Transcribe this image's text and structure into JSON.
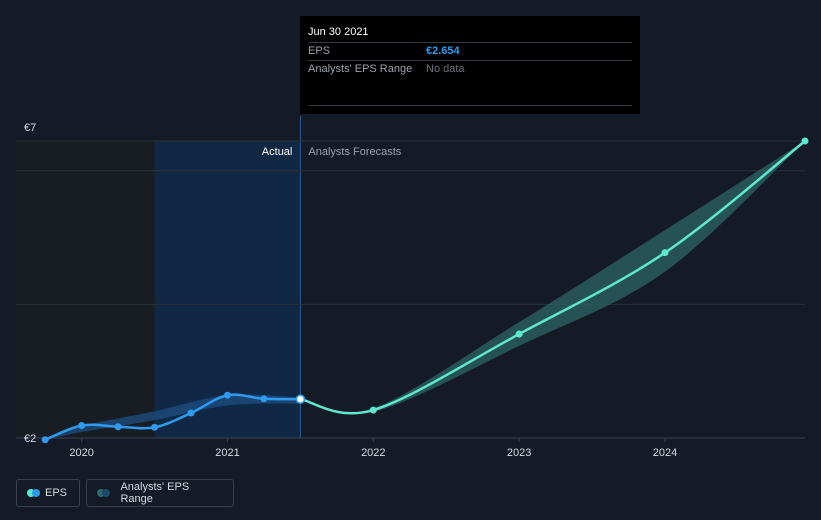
{
  "tooltip": {
    "date": "Jun 30 2021",
    "eps_label": "EPS",
    "eps_value": "€2.654",
    "range_label": "Analysts' EPS Range",
    "range_value": "No data"
  },
  "legend": {
    "eps": "EPS",
    "range": "Analysts' EPS Range"
  },
  "colors": {
    "background": "#151b26",
    "actual_line": "#2e9bf0",
    "forecast_line": "#5ee8d0",
    "range_band": "#2d6a6b",
    "actual_band": "#0f2a4a"
  },
  "chart_data": {
    "type": "line",
    "ylim": [
      2,
      7
    ],
    "y_tick_labels": [
      "€2",
      "€7"
    ],
    "x_ticks": [
      {
        "label": "2020",
        "x": 2020.0
      },
      {
        "label": "2021",
        "x": 2021.0
      },
      {
        "label": "2022",
        "x": 2022.0
      },
      {
        "label": "2023",
        "x": 2023.0
      },
      {
        "label": "2024",
        "x": 2024.0
      }
    ],
    "xlim": [
      2019.55,
      2024.96
    ],
    "divider_x": 2021.5,
    "past_shade_start": 2020.5,
    "actual_label": "Actual",
    "forecast_label": "Analysts Forecasts",
    "grid": true,
    "series": [
      {
        "name": "EPS",
        "role": "actual",
        "points": [
          {
            "x": 2019.75,
            "y": 1.97
          },
          {
            "x": 2020.0,
            "y": 2.21
          },
          {
            "x": 2020.25,
            "y": 2.19
          },
          {
            "x": 2020.5,
            "y": 2.18
          },
          {
            "x": 2020.75,
            "y": 2.42
          },
          {
            "x": 2021.0,
            "y": 2.72
          },
          {
            "x": 2021.25,
            "y": 2.66
          },
          {
            "x": 2021.5,
            "y": 2.654
          }
        ]
      },
      {
        "name": "EPS",
        "role": "forecast",
        "points": [
          {
            "x": 2021.5,
            "y": 2.654
          },
          {
            "x": 2022.0,
            "y": 2.47
          },
          {
            "x": 2023.0,
            "y": 3.75
          },
          {
            "x": 2024.0,
            "y": 5.12
          },
          {
            "x": 2024.96,
            "y": 7.0
          }
        ]
      }
    ],
    "range_band": [
      {
        "x": 2021.5,
        "low": 2.654,
        "high": 2.654
      },
      {
        "x": 2022.0,
        "low": 2.44,
        "high": 2.5
      },
      {
        "x": 2023.0,
        "low": 3.55,
        "high": 3.95
      },
      {
        "x": 2024.0,
        "low": 4.8,
        "high": 5.5
      },
      {
        "x": 2024.96,
        "low": 7.0,
        "high": 7.0
      }
    ],
    "actual_band": [
      {
        "x": 2019.75,
        "low": 1.97,
        "high": 1.97
      },
      {
        "x": 2020.0,
        "low": 2.1,
        "high": 2.2
      },
      {
        "x": 2020.5,
        "low": 2.3,
        "high": 2.45
      },
      {
        "x": 2021.0,
        "low": 2.55,
        "high": 2.72
      },
      {
        "x": 2021.5,
        "low": 2.58,
        "high": 2.68
      }
    ]
  }
}
